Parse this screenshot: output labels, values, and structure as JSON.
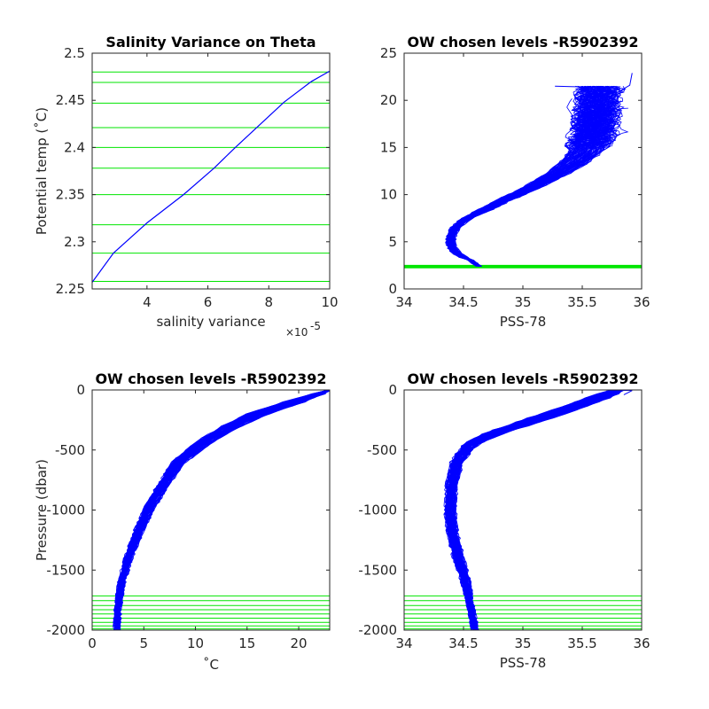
{
  "figure": {
    "colors": {
      "data_line": "#0000ff",
      "level_line": "#00e600",
      "axis": "#262626"
    }
  },
  "chart_data": [
    {
      "type": "line",
      "title": "Salinity Variance on Theta",
      "xlabel": "salinity variance",
      "x_exponent_label": "×10",
      "x_exponent": "-5",
      "ylabel": "Potential temp (˚C)",
      "xlim": [
        2.2,
        10
      ],
      "ylim": [
        2.25,
        2.5
      ],
      "xticks": [
        4,
        6,
        8,
        10
      ],
      "yticks": [
        2.25,
        2.3,
        2.35,
        2.4,
        2.45,
        2.5
      ],
      "series": [
        {
          "x": [
            2.2,
            2.9,
            4.0,
            5.2,
            6.2,
            6.9,
            7.6,
            8.5,
            9.4,
            10.0
          ],
          "y": [
            2.257,
            2.288,
            2.32,
            2.35,
            2.378,
            2.4,
            2.421,
            2.448,
            2.47,
            2.481
          ]
        }
      ],
      "levels": [
        2.258,
        2.288,
        2.318,
        2.35,
        2.378,
        2.4,
        2.421,
        2.447,
        2.469,
        2.48
      ]
    },
    {
      "type": "line",
      "title": "OW chosen levels -R5902392",
      "xlabel": "PSS-78",
      "ylabel": "",
      "xlim": [
        34,
        36
      ],
      "ylim": [
        0,
        25
      ],
      "xticks": [
        34,
        34.5,
        35,
        35.5,
        36
      ],
      "yticks": [
        0,
        5,
        10,
        15,
        20,
        25
      ],
      "envelope": {
        "min": {
          "x": [
            34.62,
            34.55,
            34.45,
            34.38,
            34.36,
            34.37,
            34.41,
            34.48,
            34.6,
            34.78,
            34.98,
            35.17,
            35.31,
            35.38,
            35.42,
            35.44,
            35.45,
            35.46,
            35.47,
            35.48,
            35.49
          ],
          "y": [
            2.4,
            3.0,
            3.5,
            4.2,
            5.0,
            5.8,
            6.6,
            7.4,
            8.2,
            9.4,
            10.6,
            12.0,
            13.4,
            14.4,
            15.4,
            16.5,
            17.5,
            18.5,
            19.5,
            20.5,
            21.5
          ]
        },
        "max": {
          "x": [
            34.64,
            34.58,
            34.5,
            34.44,
            34.42,
            34.43,
            34.47,
            34.55,
            34.7,
            34.9,
            35.12,
            35.35,
            35.55,
            35.66,
            35.72,
            35.75,
            35.76,
            35.77,
            35.78,
            35.79,
            35.8
          ],
          "y": [
            2.4,
            3.0,
            3.5,
            4.2,
            5.0,
            5.8,
            6.6,
            7.4,
            8.2,
            9.4,
            10.6,
            12.0,
            13.4,
            14.4,
            15.4,
            16.5,
            17.5,
            18.5,
            19.5,
            20.5,
            21.5
          ]
        }
      },
      "levels": [
        2.258,
        2.288,
        2.318,
        2.35,
        2.378,
        2.4,
        2.421,
        2.447,
        2.469,
        2.48
      ]
    },
    {
      "type": "line",
      "title": "OW chosen levels -R5902392",
      "xlabel": "˚C",
      "ylabel": "Pressure (dbar)",
      "xlim": [
        0,
        23
      ],
      "ylim": [
        -2000,
        0
      ],
      "xticks": [
        0,
        5,
        10,
        15,
        20
      ],
      "yticks": [
        -2000,
        -1500,
        -1000,
        -500,
        0
      ],
      "envelope": {
        "min": {
          "x": [
            2.2,
            2.3,
            2.6,
            3.2,
            4.0,
            5.0,
            6.3,
            7.8,
            9.8,
            12.2,
            15.0,
            18.5,
            21.5,
            23.0
          ],
          "y": [
            -2000,
            -1800,
            -1600,
            -1400,
            -1200,
            -1000,
            -800,
            -600,
            -450,
            -320,
            -200,
            -100,
            -30,
            0
          ]
        },
        "max": {
          "x": [
            2.6,
            2.7,
            3.1,
            3.8,
            4.8,
            5.9,
            7.3,
            9.0,
            11.3,
            14.0,
            17.0,
            20.5,
            22.5,
            23.0
          ],
          "y": [
            -2000,
            -1800,
            -1600,
            -1400,
            -1200,
            -1000,
            -800,
            -600,
            -450,
            -320,
            -200,
            -100,
            -30,
            0
          ]
        }
      },
      "levels": [
        -1715,
        -1755,
        -1795,
        -1830,
        -1865,
        -1900,
        -1935,
        -1965,
        -1990,
        -2000
      ]
    },
    {
      "type": "line",
      "title": "OW chosen levels -R5902392",
      "xlabel": "PSS-78",
      "ylabel": "",
      "xlim": [
        34,
        36
      ],
      "ylim": [
        -2000,
        0
      ],
      "xticks": [
        34,
        34.5,
        35,
        35.5,
        36
      ],
      "yticks": [
        -2000,
        -1500,
        -1000,
        -500,
        0
      ],
      "envelope": {
        "min": {
          "x": [
            34.58,
            34.54,
            34.49,
            34.42,
            34.37,
            34.35,
            34.36,
            34.4,
            34.5,
            34.7,
            35.0,
            35.3,
            35.55,
            35.75
          ],
          "y": [
            -2000,
            -1800,
            -1600,
            -1400,
            -1200,
            -1000,
            -800,
            -600,
            -450,
            -350,
            -250,
            -150,
            -60,
            0
          ]
        },
        "max": {
          "x": [
            34.62,
            34.58,
            34.55,
            34.5,
            34.45,
            34.43,
            34.44,
            34.49,
            34.62,
            34.88,
            35.2,
            35.5,
            35.75,
            35.85
          ],
          "y": [
            -2000,
            -1800,
            -1600,
            -1400,
            -1200,
            -1000,
            -800,
            -600,
            -450,
            -350,
            -250,
            -150,
            -60,
            0
          ]
        }
      },
      "levels": [
        -1715,
        -1755,
        -1795,
        -1830,
        -1865,
        -1900,
        -1935,
        -1965,
        -1990,
        -2000
      ]
    }
  ]
}
